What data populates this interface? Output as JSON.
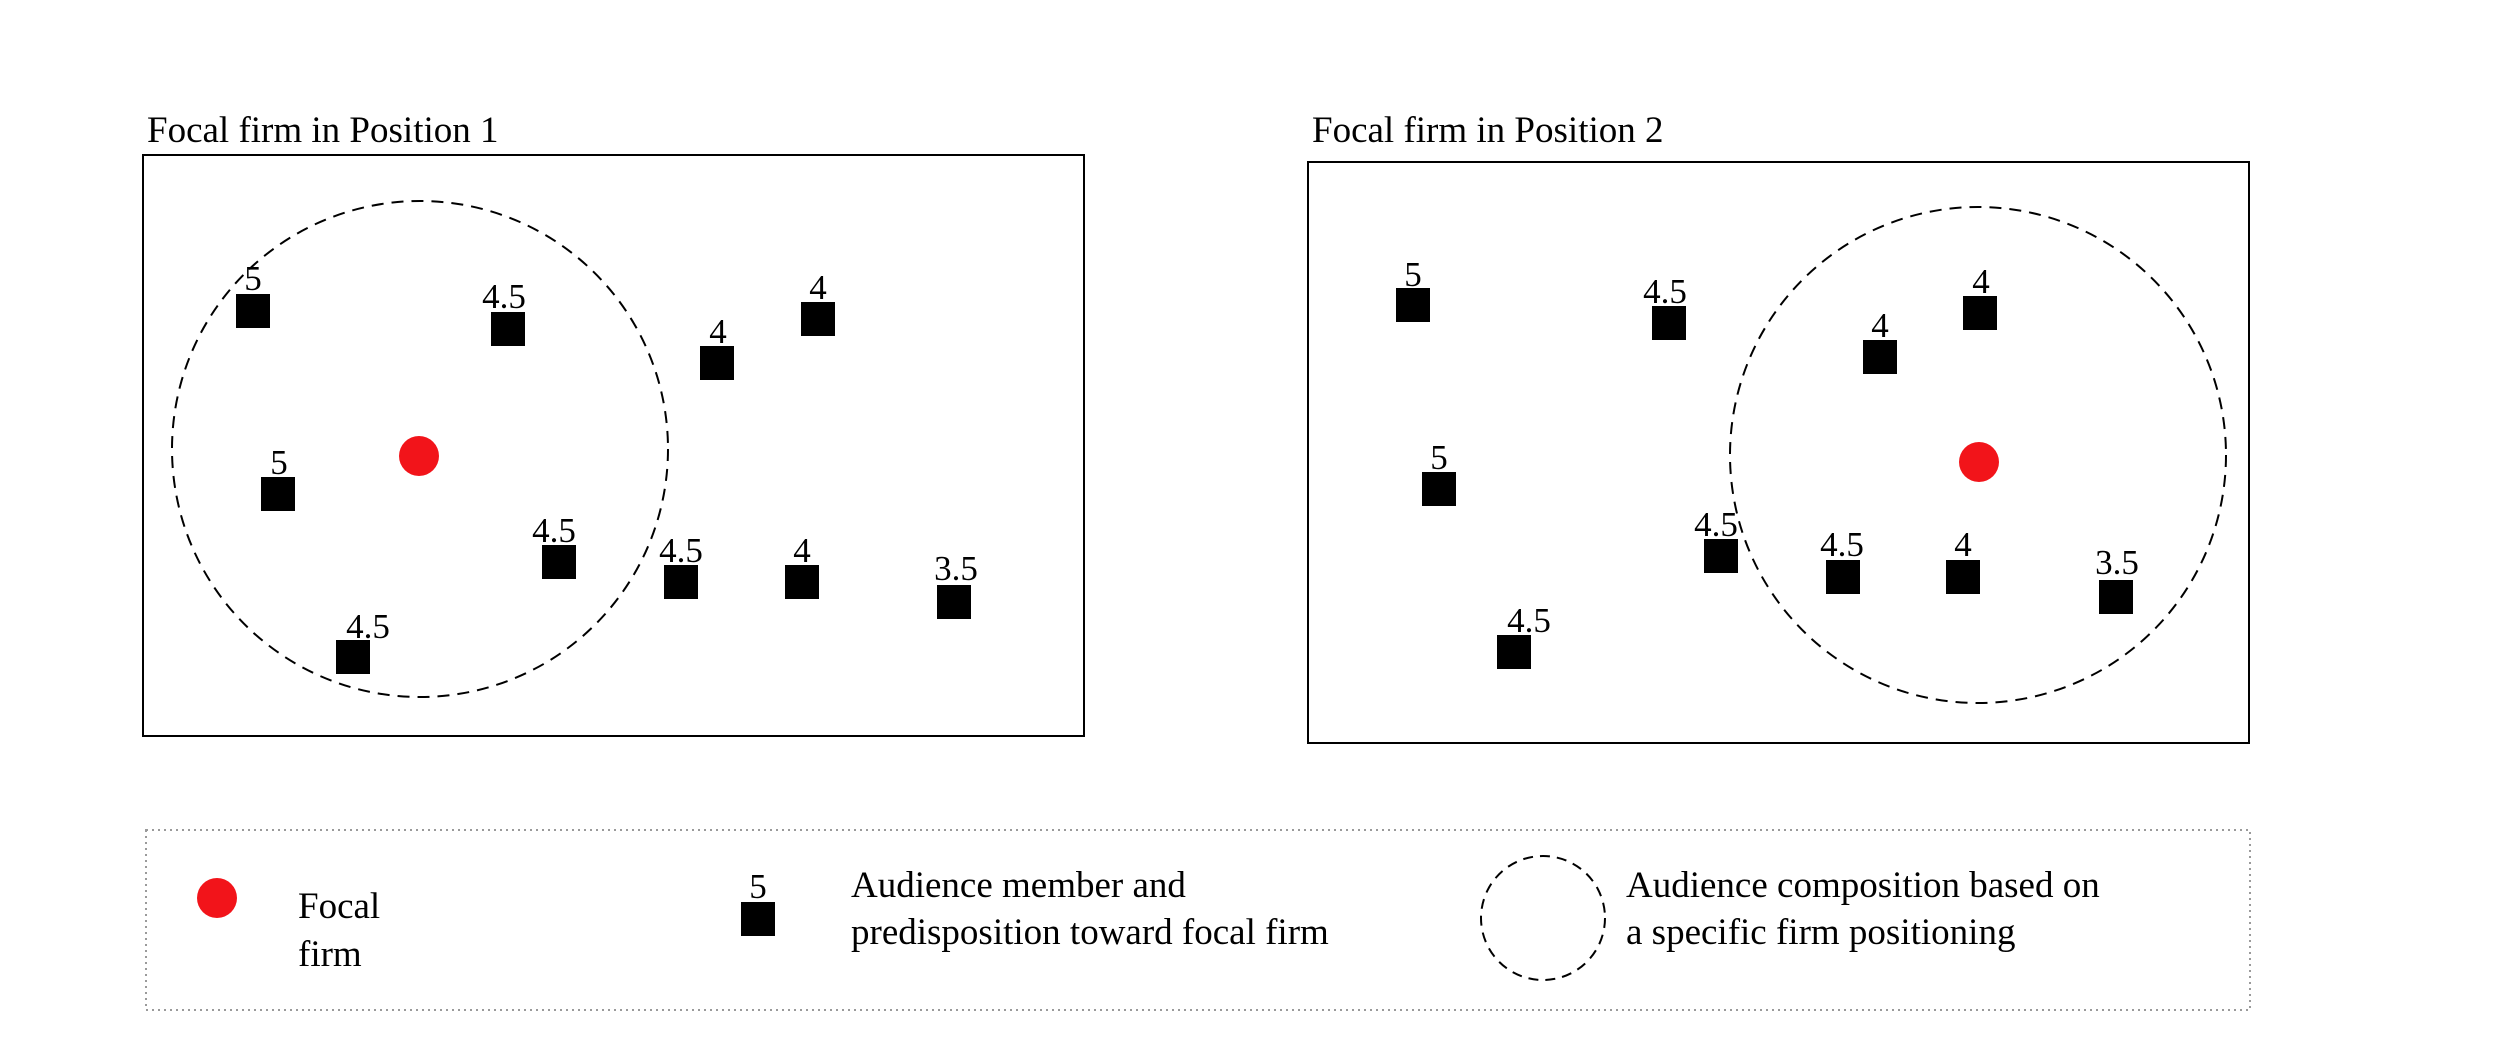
{
  "colors": {
    "focal_firm": "#f2141a",
    "audience_member": "#000000",
    "frame": "#000000",
    "legend_border": "#9a9a9a"
  },
  "panels": [
    {
      "title": "Focal firm in Position 1",
      "members": [
        {
          "label": "5"
        },
        {
          "label": "4.5"
        },
        {
          "label": "4"
        },
        {
          "label": "4"
        },
        {
          "label": "5"
        },
        {
          "label": "4.5"
        },
        {
          "label": "4.5"
        },
        {
          "label": "4"
        },
        {
          "label": "3.5"
        },
        {
          "label": "4.5"
        }
      ]
    },
    {
      "title": "Focal firm in Position 2",
      "members": [
        {
          "label": "5"
        },
        {
          "label": "4.5"
        },
        {
          "label": "4"
        },
        {
          "label": "4"
        },
        {
          "label": "5"
        },
        {
          "label": "4.5"
        },
        {
          "label": "4.5"
        },
        {
          "label": "4"
        },
        {
          "label": "3.5"
        },
        {
          "label": "4.5"
        }
      ]
    }
  ],
  "legend": {
    "focal_firm_line1": "Focal",
    "focal_firm_line2": "firm",
    "member_sample_label": "5",
    "member_line1": "Audience member and",
    "member_line2": "predisposition toward focal firm",
    "composition_line1": "Audience composition based on",
    "composition_line2": "a specific firm positioning"
  }
}
